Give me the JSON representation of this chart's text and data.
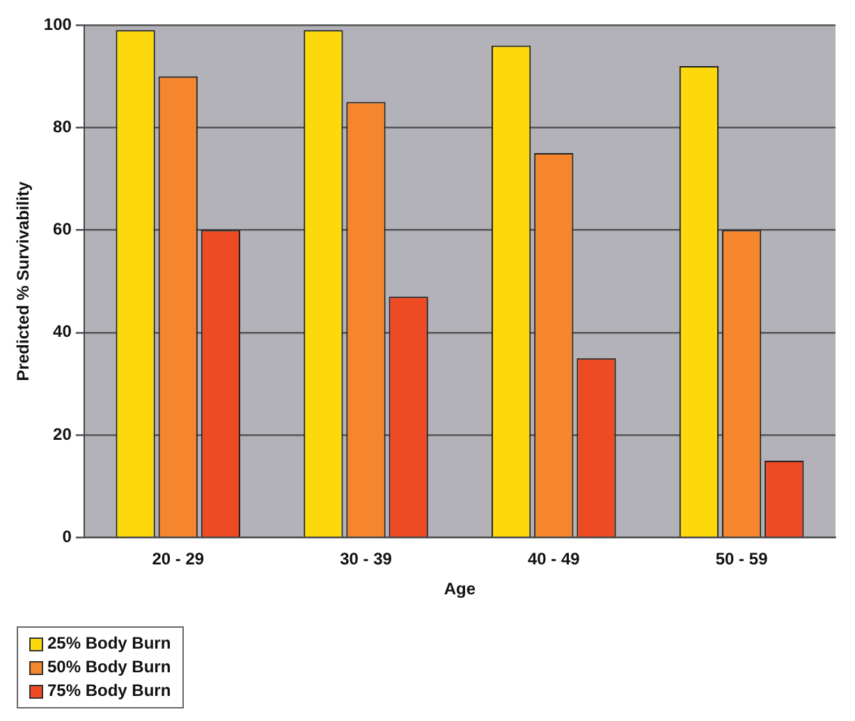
{
  "chart_data": {
    "type": "bar",
    "xlabel": "Age",
    "ylabel": "Predicted % Survivability",
    "categories": [
      "20 - 29",
      "30 - 39",
      "40 - 49",
      "50 - 59"
    ],
    "series": [
      {
        "name": "25% Body Burn",
        "color": "#fcd80c",
        "values": [
          99,
          99,
          96,
          92
        ]
      },
      {
        "name": "50% Body Burn",
        "color": "#f5862e",
        "values": [
          90,
          85,
          75,
          60
        ]
      },
      {
        "name": "75% Body Burn",
        "color": "#ee4a24",
        "values": [
          60,
          47,
          35,
          15
        ]
      }
    ],
    "ylim": [
      0,
      100
    ],
    "yticks": [
      0,
      20,
      40,
      60,
      80,
      100
    ],
    "grid": "y",
    "legend": "bottom left"
  }
}
